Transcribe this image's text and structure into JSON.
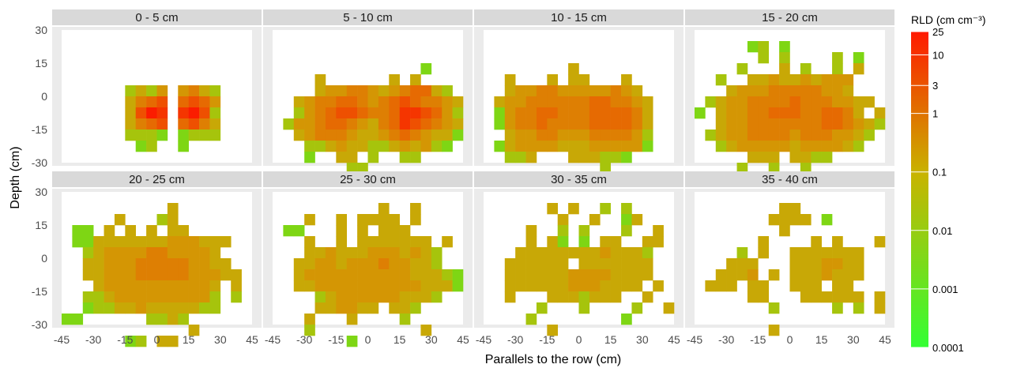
{
  "chart_data": {
    "type": "heatmap",
    "xlabel": "Parallels to the row (cm)",
    "ylabel": "Depth (cm)",
    "x_ticks": [
      "-45",
      "-30",
      "-15",
      "0",
      "15",
      "30",
      "45"
    ],
    "y_ticks": [
      "30",
      "15",
      "0",
      "-15",
      "-30"
    ],
    "xlim": [
      -45,
      45
    ],
    "ylim": [
      -30,
      30
    ],
    "cell_size_cm": 5,
    "color_scale": {
      "title": "RLD (cm cm⁻³)",
      "scale": "log",
      "low_color": "#33ff33",
      "mid_color": "#c8b400",
      "high_color": "#ff1a00",
      "ticks": [
        "25",
        "10",
        "3",
        "1",
        "0.1",
        "0.01",
        "0.001",
        "0.0001"
      ],
      "tick_values": [
        25,
        10,
        3,
        1,
        0.1,
        0.01,
        0.001,
        0.0001
      ],
      "range": [
        0.0001,
        25
      ]
    },
    "panels": [
      {
        "title": "0 - 5 cm",
        "rows": [
          "..................",
          "..................",
          "..................",
          "..................",
          "..................",
          "......2324.4532...",
          "......3567.6764...",
          "......3798.8972...",
          "......3567.6753...",
          "......2221.1222...",
          ".......12..1......",
          "..................",
          "..................",
          "..................",
          ".................."
        ]
      },
      {
        "title": "5 - 10 cm",
        "rows": [
          "..................",
          "..................",
          "..................",
          "..............1...",
          "....3......3.3....",
          "....3445543456632.",
          "..3455665456765543",
          "..2456776556887642",
          ".24456654356876543",
          "..3455543345654331",
          "...22343322343421.",
          "...1..33.2..22....",
          ".......22.........",
          "..................",
          ".................."
        ]
      },
      {
        "title": "10 - 15 cm",
        "rows": [
          "..................",
          "..................",
          "..................",
          "........3.........",
          "..3...3.33...3....",
          "..3445544444543...",
          ".344555555665543..",
          ".145566555666653..",
          ".145565555666653..",
          "..34455444555542..",
          ".134444333444441..",
          "..223...333221....",
          "...........2......",
          "..........1.......",
          ".................."
        ]
      },
      {
        "title": "15 - 20 cm",
        "rows": [
          "..................",
          ".....12.1.........",
          "......2.2....2.1..",
          "....2...3.2..2.3..",
          "..2..3343343444...",
          "...344455555443...",
          ".2344555565554433.",
          "1.34455666556653.3",
          "..3445555555665432",
          ".2344555545554432.",
          "..23444443444432..",
          ".....333.3322.....",
          "....2..2..2.......",
          "....1.............",
          ".................."
        ]
      },
      {
        "title": "20 - 25 cm",
        "rows": [
          "..................",
          "..........3.......",
          ".....3...23.......",
          ".11.3.3.3.33......",
          ".113333333444333..",
          "..2344445544443...",
          "..33444555554433..",
          "..334445555544433.",
          "...344444444443.3.",
          "..2234444444442.2.",
          "..1223343333322...",
          "11......2232......",
          "............3.....",
          "......12.33.......",
          ".................."
        ]
      },
      {
        "title": "25 - 30 cm",
        "rows": [
          "..................",
          "..........3..3....",
          "...3..3.3333.3....",
          ".11...3.3.333.....",
          "...3..3.3333333.3.",
          "...3343334443432..",
          "..33443444544332..",
          "..3444444444433321",
          "..3344444444443331",
          "....234444443332..",
          "....334433.332....",
          "...3...3....2.....",
          "...2..........3...",
          ".......1..........",
          ".................."
        ]
      },
      {
        "title": "30 - 35 cm",
        "rows": [
          "..................",
          "......3.3..2.2....",
          ".......3..3..13...",
          "....3..2.2...2..3.",
          "....3.31.1.33..33.",
          "...3333333343332..",
          "..333333.3333333..",
          "..33333344443333..",
          "..3333334443333.3.",
          "..3...3332333..3..",
          ".....2...2....2..3",
          "....2........1....",
          "......3...........",
          "..................",
          ".................."
        ]
      },
      {
        "title": "35 - 40 cm",
        "rows": [
          "..................",
          "........33........",
          ".......3333.1.....",
          "........3.........",
          "......3....3.3...3",
          "....2.3..3333333..",
          "...333...3334433..",
          "..3334.3.3334333..",
          ".333.33..333.33...",
          ".....33...333333.3",
          ".......2.....2.2.3",
          "..................",
          ".......3..........",
          "..................",
          ".................."
        ]
      }
    ]
  }
}
